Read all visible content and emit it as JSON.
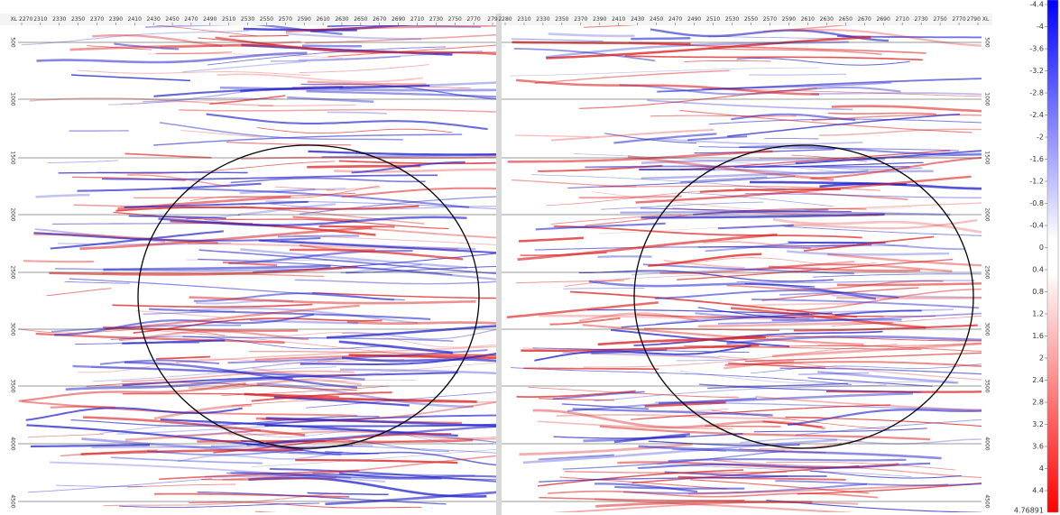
{
  "left_panel": {
    "xaxis": [
      "XL 2270",
      "2310",
      "2330",
      "2350",
      "2370",
      "2390",
      "2410",
      "2430",
      "2450",
      "2470",
      "2490",
      "2510",
      "2530",
      "2550",
      "2570",
      "2590",
      "2610",
      "2630",
      "2650",
      "2670",
      "2690",
      "2710",
      "2730",
      "2750",
      "2770",
      "279"
    ],
    "yaxis": [
      "500",
      "1000",
      "1500",
      "2000",
      "2500",
      "3000",
      "3500",
      "4000",
      "4500"
    ]
  },
  "right_panel": {
    "xaxis": [
      "2280",
      "2310",
      "2330",
      "2350",
      "2370",
      "2390",
      "2410",
      "2430",
      "2450",
      "2470",
      "2490",
      "2510",
      "2530",
      "2550",
      "2570",
      "2590",
      "2610",
      "2630",
      "2650",
      "2670",
      "2690",
      "2710",
      "2730",
      "2750",
      "2770",
      "2790 XL"
    ],
    "yaxis": [
      "500",
      "1000",
      "1500",
      "2000",
      "2500",
      "3000",
      "3500",
      "4000",
      "4500"
    ]
  },
  "colorbar": {
    "ticks": [
      "-4.4",
      "-4",
      "-3.6",
      "-3.2",
      "-2.8",
      "-2.4",
      "-2",
      "-1.6",
      "-1.2",
      "-0.8",
      "-0.4",
      "0",
      "0.4",
      "0.8",
      "1.2",
      "1.6",
      "2",
      "2.4",
      "2.8",
      "3.2",
      "3.6",
      "4",
      "4.4"
    ],
    "end_label": "4.76891"
  }
}
